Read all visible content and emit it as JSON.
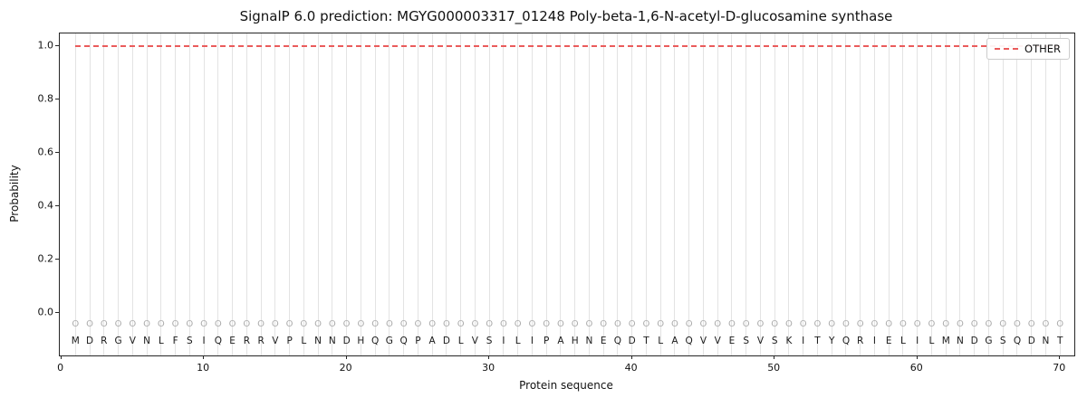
{
  "chart_data": {
    "type": "line",
    "title": "SignalP 6.0 prediction: MGYG000003317_01248 Poly-beta-1,6-N-acetyl-D-glucosamine synthase",
    "xlabel": "Protein sequence",
    "ylabel": "Probability",
    "xlim": [
      -0.1,
      71
    ],
    "ylim": [
      0,
      1
    ],
    "x_ticks": [
      0,
      10,
      20,
      30,
      40,
      50,
      60,
      70
    ],
    "y_ticks": [
      0.0,
      0.2,
      0.4,
      0.6,
      0.8,
      1.0
    ],
    "grid": "vertical-per-residue",
    "marker": "O",
    "sequence": "MDRGVNLFSIQERRVPLNNDHQGQPADLVSILIPAHNEQDTLAQVVESVSKITYQRIELILMNDGSQDNT",
    "series": [
      {
        "name": "OTHER",
        "style": "dashed",
        "color": "#ea5b5b",
        "x_start": 1,
        "x_end": 70,
        "values": [
          1,
          1,
          1,
          1,
          1,
          1,
          1,
          1,
          1,
          1,
          1,
          1,
          1,
          1,
          1,
          1,
          1,
          1,
          1,
          1,
          1,
          1,
          1,
          1,
          1,
          1,
          1,
          1,
          1,
          1,
          1,
          1,
          1,
          1,
          1,
          1,
          1,
          1,
          1,
          1,
          1,
          1,
          1,
          1,
          1,
          1,
          1,
          1,
          1,
          1,
          1,
          1,
          1,
          1,
          1,
          1,
          1,
          1,
          1,
          1,
          1,
          1,
          1,
          1,
          1,
          1,
          1,
          1,
          1,
          1
        ]
      }
    ],
    "legend": {
      "location": "upper right",
      "entries": [
        "OTHER"
      ]
    }
  }
}
